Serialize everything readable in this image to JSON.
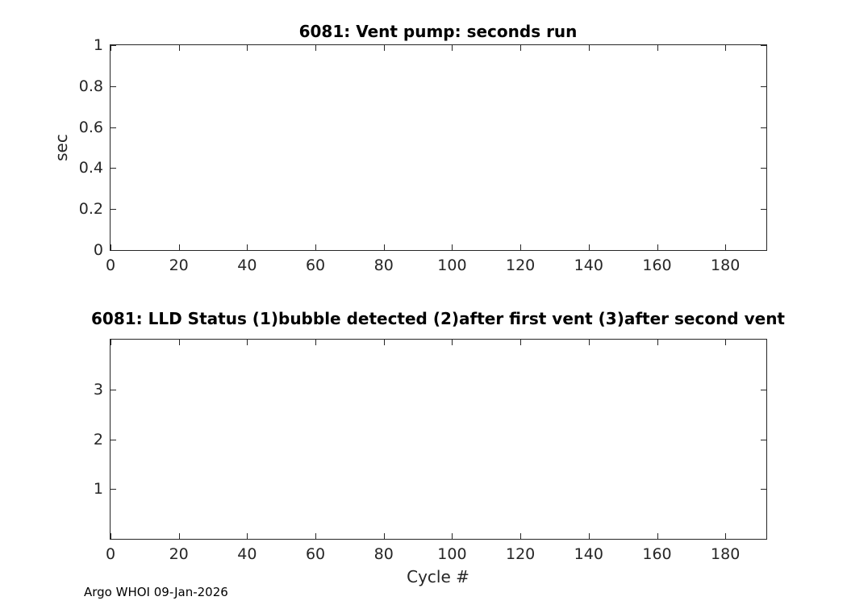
{
  "figure": {
    "footer": "Argo WHOI 09-Jan-2026"
  },
  "chart_data": [
    {
      "type": "line",
      "title": "6081: Vent pump: seconds run",
      "xlabel": "",
      "ylabel": "sec",
      "xlim": [
        0,
        192
      ],
      "ylim": [
        0,
        1
      ],
      "xticks": [
        0,
        20,
        40,
        60,
        80,
        100,
        120,
        140,
        160,
        180
      ],
      "yticks": [
        0,
        0.2,
        0.4,
        0.6,
        0.8,
        1
      ],
      "grid": false,
      "legend": null,
      "series": []
    },
    {
      "type": "line",
      "title": "6081: LLD Status   (1)bubble detected   (2)after first vent  (3)after second vent",
      "xlabel": "Cycle #",
      "ylabel": "",
      "xlim": [
        0,
        192
      ],
      "ylim": [
        0,
        4
      ],
      "xticks": [
        0,
        20,
        40,
        60,
        80,
        100,
        120,
        140,
        160,
        180
      ],
      "yticks": [
        1,
        2,
        3
      ],
      "grid": false,
      "legend": null,
      "series": []
    }
  ]
}
